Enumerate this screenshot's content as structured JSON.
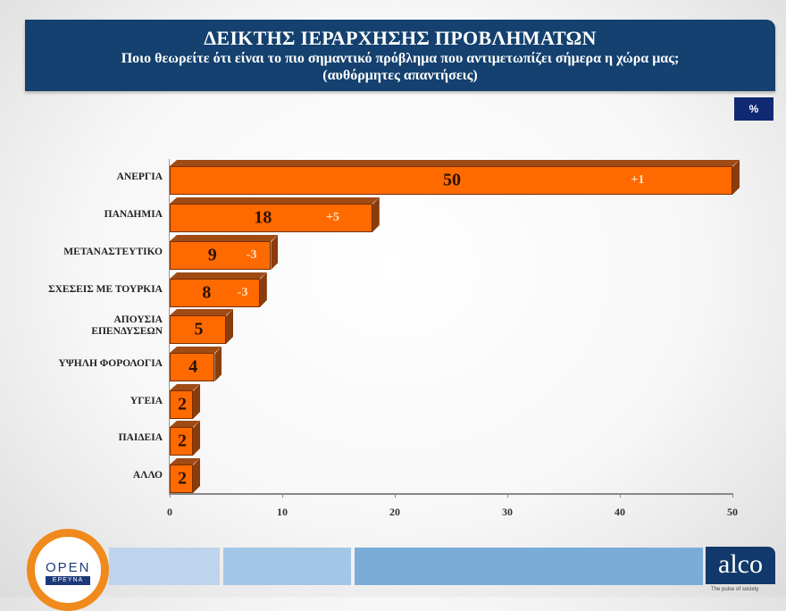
{
  "header": {
    "title": "ΔΕΙΚΤΗΣ ΙΕΡΑΡΧΗΣΗΣ ΠΡΟΒΛΗΜΑΤΩΝ",
    "subtitle": "Ποιο θεωρείτε ότι είναι το πιο σημαντικό πρόβλημα που αντιμετωπίζει σήμερα η χώρα μας;",
    "note": "(αυθόρμητες απαντήσεις)"
  },
  "unit_badge": "%",
  "chart_data": {
    "type": "bar",
    "orientation": "horizontal",
    "title": "ΔΕΙΚΤΗΣ ΙΕΡΑΡΧΗΣΗΣ ΠΡΟΒΛΗΜΑΤΩΝ",
    "subtitle": "Ποιο θεωρείτε ότι είναι το πιο σημαντικό πρόβλημα που αντιμετωπίζει σήμερα η χώρα μας; (αυθόρμητες απαντήσεις)",
    "categories": [
      "ΑΝΕΡΓΙΑ",
      "ΠΑΝΔΗΜΙΑ",
      "ΜΕΤΑΝΑΣΤΕΥΤΙΚΟ",
      "ΣΧΕΣΕΙΣ ΜΕ ΤΟΥΡΚΙΑ",
      "ΑΠΟΥΣΙΑ ΕΠΕΝΔΥΣΕΩΝ",
      "ΥΨΗΛΗ ΦΟΡΟΛΟΓΙΑ",
      "ΥΓΕΙΑ",
      "ΠΑΙΔΕΙΑ",
      "ΑΛΛΟ"
    ],
    "values": [
      50,
      18,
      9,
      8,
      5,
      4,
      2,
      2,
      2
    ],
    "changes": [
      "+1",
      "+5",
      "-3",
      "-3",
      "",
      "",
      "",
      "",
      ""
    ],
    "xlabel": "",
    "ylabel": "",
    "unit": "%",
    "xlim": [
      0,
      50
    ],
    "xticks": [
      "0",
      "10",
      "20",
      "30",
      "40",
      "50"
    ],
    "bar_color": "#ff6a00",
    "grid": false,
    "legend": null
  },
  "bars": [
    {
      "label": "ΑΝΕΡΓΙΑ",
      "value": "50",
      "change": "+1"
    },
    {
      "label": "ΠΑΝΔΗΜΙΑ",
      "value": "18",
      "change": "+5"
    },
    {
      "label": "ΜΕΤΑΝΑΣΤΕΥΤΙΚΟ",
      "value": "9",
      "change": "-3"
    },
    {
      "label": "ΣΧΕΣΕΙΣ ΜΕ ΤΟΥΡΚΙΑ",
      "value": "8",
      "change": "-3"
    },
    {
      "label": "ΑΠΟΥΣΙΑ ΕΠΕΝΔΥΣΕΩΝ",
      "value": "5",
      "change": ""
    },
    {
      "label": "ΥΨΗΛΗ ΦΟΡΟΛΟΓΙΑ",
      "value": "4",
      "change": ""
    },
    {
      "label": "ΥΓΕΙΑ",
      "value": "2",
      "change": ""
    },
    {
      "label": "ΠΑΙΔΕΙΑ",
      "value": "2",
      "change": ""
    },
    {
      "label": "ΑΛΛΟ",
      "value": "2",
      "change": ""
    }
  ],
  "axis": {
    "ticks": [
      "0",
      "10",
      "20",
      "30",
      "40",
      "50"
    ]
  },
  "footer": {
    "open_logo": "OPEN",
    "open_tag": "ΕΡΕΥΝΑ",
    "alco_logo": "alco",
    "alco_tagline": "The pulse of society"
  }
}
